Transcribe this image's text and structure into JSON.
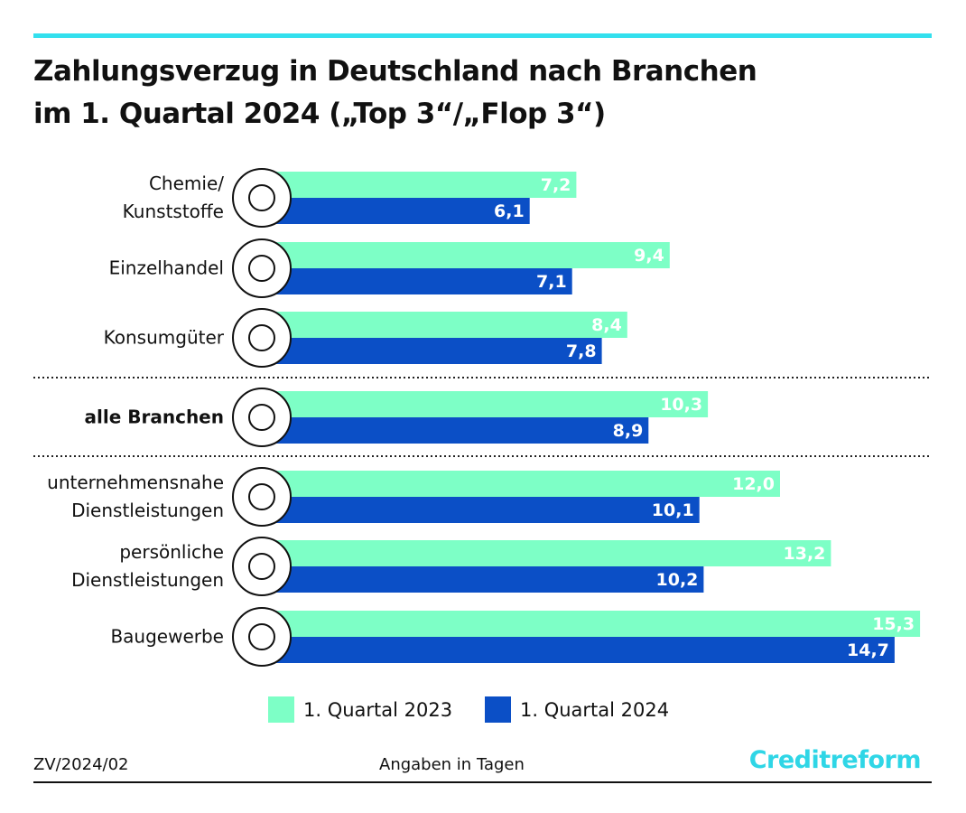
{
  "chart_data": {
    "type": "bar",
    "orientation": "horizontal",
    "title": "Zahlungsverzug in Deutschland nach Branchen\nim 1. Quartal 2024 („Top 3“/„Flop 3“)",
    "categories": [
      "Chemie/\nKunststoffe",
      "Einzelhandel",
      "Konsumgüter",
      "alle Branchen",
      "unternehmensnahe\nDienstleistungen",
      "persönliche\nDienstleistungen",
      "Baugewerbe"
    ],
    "highlight_index": 3,
    "series": [
      {
        "name": "1. Quartal 2023",
        "color": "#7dffc6",
        "values": [
          7.2,
          9.4,
          8.4,
          10.3,
          12.0,
          13.2,
          15.3
        ],
        "value_labels": [
          "7,2",
          "9,4",
          "8,4",
          "10,3",
          "12,0",
          "13,2",
          "15,3"
        ]
      },
      {
        "name": "1. Quartal 2024",
        "color": "#0b4fc6",
        "values": [
          6.1,
          7.1,
          7.8,
          8.9,
          10.1,
          10.2,
          14.7
        ],
        "value_labels": [
          "6,1",
          "7,1",
          "7,8",
          "8,9",
          "10,1",
          "10,2",
          "14,7"
        ]
      }
    ],
    "source": "ZV/2024/02",
    "note": "Angaben in Tagen",
    "brand": "Creditreform"
  }
}
